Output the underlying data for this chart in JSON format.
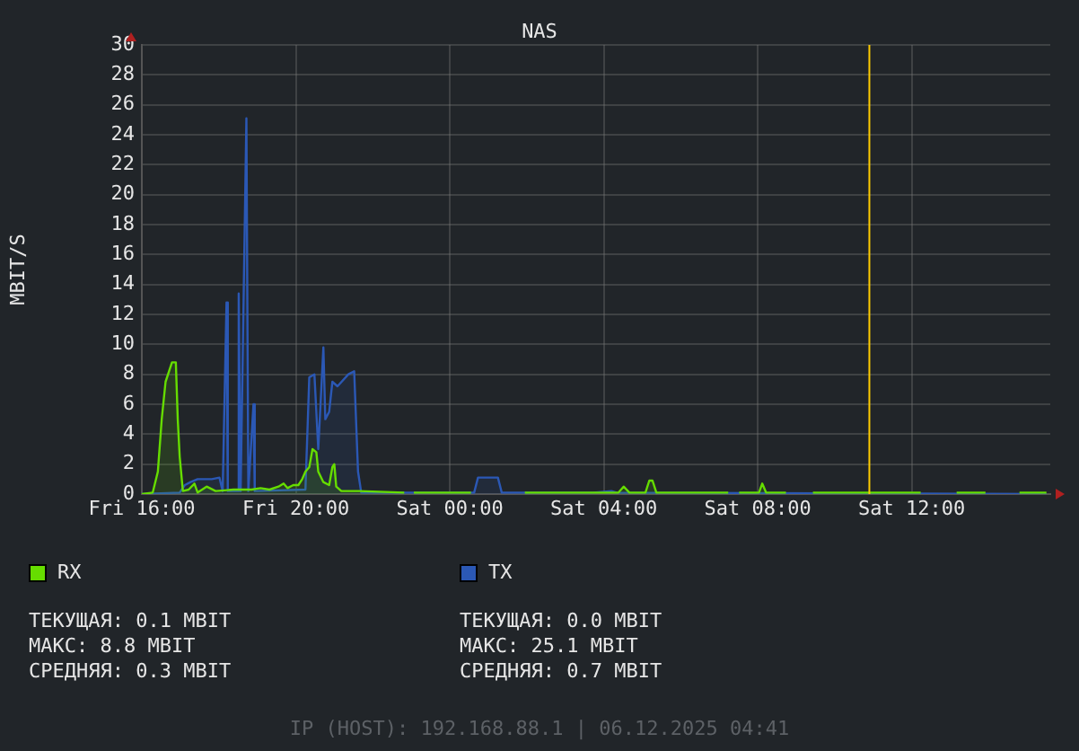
{
  "chart_data": {
    "type": "area",
    "title": "NAS",
    "ylabel": "MBIT/S",
    "xlim": [
      "2025-12-05T16:00",
      "2025-12-06T15:36"
    ],
    "xticks": [
      {
        "value": "2025-12-05T16:00",
        "label": "Fri 16:00"
      },
      {
        "value": "2025-12-05T20:00",
        "label": "Fri 20:00"
      },
      {
        "value": "2025-12-06T00:00",
        "label": "Sat 00:00"
      },
      {
        "value": "2025-12-06T04:00",
        "label": "Sat 04:00"
      },
      {
        "value": "2025-12-06T08:00",
        "label": "Sat 08:00"
      },
      {
        "value": "2025-12-06T12:00",
        "label": "Sat 12:00"
      }
    ],
    "ylim": [
      0,
      30
    ],
    "yticks": [
      0,
      2,
      4,
      6,
      8,
      10,
      12,
      14,
      16,
      18,
      20,
      22,
      24,
      26,
      28,
      30
    ],
    "grid": true,
    "legend": "bottom",
    "marker": "none",
    "line_style": "solid",
    "ref_lines": [
      {
        "axis": "x",
        "value": "2025-12-06T10:54",
        "color": "#ffcc00"
      }
    ],
    "series": [
      {
        "name": "RX",
        "color": "#66dd00",
        "x": [
          "2025-12-05T16:00",
          "2025-12-05T16:17",
          "2025-12-05T16:25",
          "2025-12-05T16:31",
          "2025-12-05T16:37",
          "2025-12-05T16:47",
          "2025-12-05T16:53",
          "2025-12-05T16:56",
          "2025-12-05T16:59",
          "2025-12-05T17:04",
          "2025-12-05T17:13",
          "2025-12-05T17:22",
          "2025-12-05T17:27",
          "2025-12-05T17:41",
          "2025-12-05T17:55",
          "2025-12-05T18:23",
          "2025-12-05T18:51",
          "2025-12-05T19:05",
          "2025-12-05T19:19",
          "2025-12-05T19:33",
          "2025-12-05T19:41",
          "2025-12-05T19:47",
          "2025-12-05T19:56",
          "2025-12-05T20:04",
          "2025-12-05T20:10",
          "2025-12-05T20:15",
          "2025-12-05T20:21",
          "2025-12-05T20:26",
          "2025-12-05T20:32",
          "2025-12-05T20:35",
          "2025-12-05T20:43",
          "2025-12-05T20:52",
          "2025-12-05T20:57",
          "2025-12-05T21:00",
          "2025-12-05T21:03",
          "2025-12-05T21:11",
          "2025-12-05T21:39",
          "2025-12-05T22:49",
          "2025-12-05T23:00",
          "2025-12-05T23:04",
          "2025-12-06T00:33",
          "2025-12-06T00:42",
          "2025-12-06T01:57",
          "2025-12-06T03:44",
          "2025-12-06T04:23",
          "2025-12-06T04:31",
          "2025-12-06T04:40",
          "2025-12-06T05:05",
          "2025-12-06T05:11",
          "2025-12-06T05:16",
          "2025-12-06T05:22",
          "2025-12-06T07:14",
          "2025-12-06T07:24",
          "2025-12-06T07:31",
          "2025-12-06T08:02",
          "2025-12-06T08:07",
          "2025-12-06T08:13",
          "2025-12-06T08:44",
          "2025-12-06T08:54",
          "2025-12-06T09:26",
          "2025-12-06T12:14",
          "2025-12-06T12:24",
          "2025-12-06T13:10",
          "2025-12-06T13:55",
          "2025-12-06T14:06",
          "2025-12-06T14:48",
          "2025-12-06T15:30"
        ],
        "values": [
          0,
          0.1,
          1.5,
          5,
          7.5,
          8.8,
          8.8,
          5,
          2.5,
          0.2,
          0.3,
          0.7,
          0.1,
          0.5,
          0.2,
          0.3,
          0.3,
          0.4,
          0.3,
          0.5,
          0.7,
          0.4,
          0.6,
          0.6,
          1.0,
          1.5,
          1.8,
          3,
          2.8,
          1.5,
          0.8,
          0.6,
          1.8,
          2.0,
          0.5,
          0.2,
          0.2,
          0.1,
          null,
          0.1,
          0.1,
          null,
          0.1,
          0.1,
          0.1,
          0.5,
          0.1,
          0.1,
          0.9,
          0.9,
          0.1,
          0.1,
          null,
          0.1,
          0.1,
          0.7,
          0.1,
          0.1,
          null,
          0.1,
          0.1,
          null,
          0.1,
          0.1,
          null,
          0.1,
          0.1
        ]
      },
      {
        "name": "TX",
        "color": "#2b58b5",
        "x": [
          "2025-12-05T16:00",
          "2025-12-05T16:59",
          "2025-12-05T17:07",
          "2025-12-05T17:16",
          "2025-12-05T17:27",
          "2025-12-05T17:49",
          "2025-12-05T18:01",
          "2025-12-05T18:06",
          "2025-12-05T18:12",
          "2025-12-05T18:14",
          "2025-12-05T18:29",
          "2025-12-05T18:31",
          "2025-12-05T18:34",
          "2025-12-05T18:43",
          "2025-12-05T18:46",
          "2025-12-05T18:54",
          "2025-12-05T18:56",
          "2025-12-05T20:15",
          "2025-12-05T20:21",
          "2025-12-05T20:29",
          "2025-12-05T20:35",
          "2025-12-05T20:43",
          "2025-12-05T20:46",
          "2025-12-05T20:52",
          "2025-12-05T20:57",
          "2025-12-05T21:05",
          "2025-12-05T21:22",
          "2025-12-05T21:31",
          "2025-12-05T21:37",
          "2025-12-05T21:42",
          "2025-12-06T00:38",
          "2025-12-06T00:44",
          "2025-12-06T01:15",
          "2025-12-06T01:21",
          "2025-12-06T03:44",
          "2025-12-06T04:12",
          "2025-12-06T04:20",
          "2025-12-06T15:30"
        ],
        "values": [
          0,
          0.1,
          0.6,
          0.8,
          1.0,
          1.0,
          1.1,
          0.2,
          12.8,
          0.2,
          0.2,
          13.4,
          0.2,
          25.1,
          0.2,
          6,
          0.2,
          0.3,
          7.8,
          8,
          3,
          9.8,
          5,
          5.5,
          7.5,
          7.2,
          8,
          8.2,
          1.5,
          0.1,
          0.1,
          1.1,
          1.1,
          0.1,
          0.1,
          0.2,
          0.1,
          0
        ]
      }
    ],
    "annotations": [
      "ТЕКУЩАЯ: 0.1 MBIT",
      "МАКС: 8.8 MBIT",
      "СРЕДНЯЯ: 0.3 MBIT",
      "ТЕКУЩАЯ: 0.0 MBIT",
      "МАКС: 25.1 MBIT",
      "СРЕДНЯЯ: 0.7 MBIT",
      "IP (HOST): 192.168.88.1 | 06.12.2025 04:41"
    ]
  }
}
